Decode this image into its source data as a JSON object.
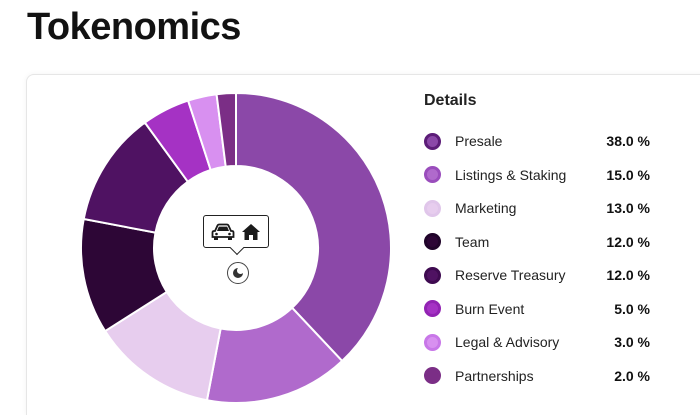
{
  "page": {
    "title": "Tokenomics"
  },
  "details": {
    "heading": "Details"
  },
  "chart_data": {
    "type": "pie",
    "variant": "donut",
    "legend_position": "right",
    "unit": "%",
    "slices": [
      {
        "label": "Presale",
        "value": 38.0,
        "value_text": "38.0 %",
        "color": "#8b48a8",
        "ring": "#5c1d78"
      },
      {
        "label": "Listings & Staking",
        "value": 15.0,
        "value_text": "15.0 %",
        "color": "#b06acc",
        "ring": "#9a4dbc"
      },
      {
        "label": "Marketing",
        "value": 13.0,
        "value_text": "13.0 %",
        "color": "#e7cdee",
        "ring": "#e0c6ea"
      },
      {
        "label": "Team",
        "value": 12.0,
        "value_text": "12.0 %",
        "color": "#2d0636",
        "ring": "#20042a"
      },
      {
        "label": "Reserve Treasury",
        "value": 12.0,
        "value_text": "12.0 %",
        "color": "#4f1262",
        "ring": "#3e0a50"
      },
      {
        "label": "Burn Event",
        "value": 5.0,
        "value_text": "5.0 %",
        "color": "#a532c4",
        "ring": "#9223b3"
      },
      {
        "label": "Legal & Advisory",
        "value": 3.0,
        "value_text": "3.0 %",
        "color": "#d890f0",
        "ring": "#c877e8"
      },
      {
        "label": "Partnerships",
        "value": 2.0,
        "value_text": "2.0 %",
        "color": "#7b2e86",
        "ring": "#7b2e86"
      }
    ]
  },
  "center": {
    "icons": [
      "car-icon",
      "house-icon"
    ],
    "spinner": "spinner-icon"
  }
}
